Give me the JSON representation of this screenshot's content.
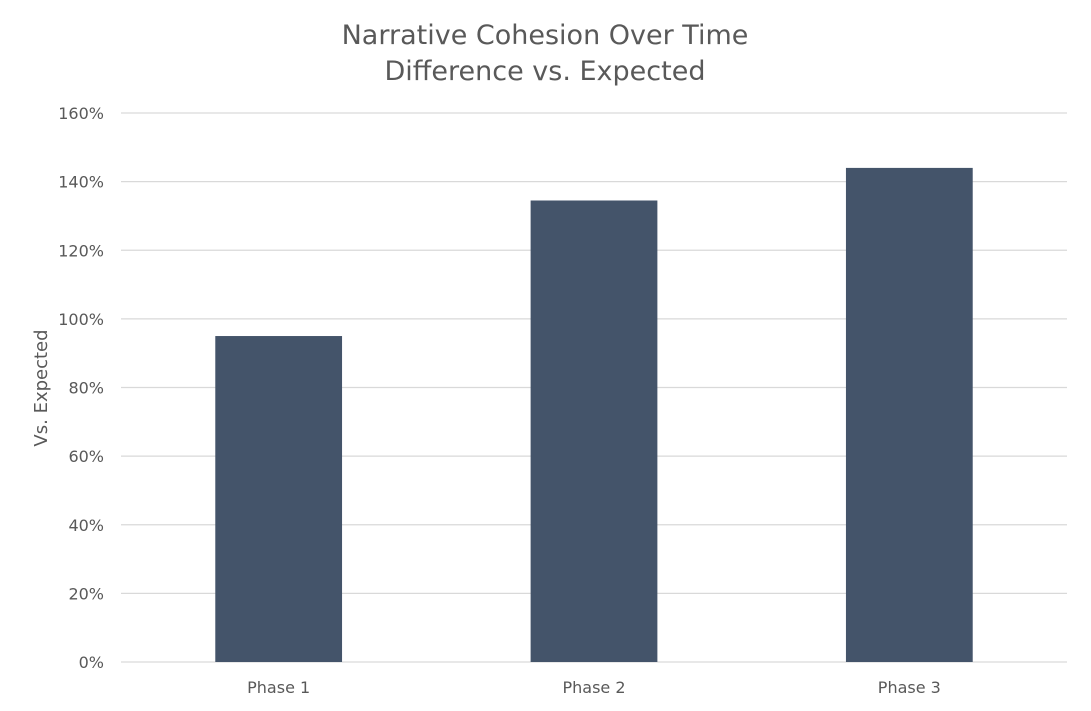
{
  "chart_data": {
    "type": "bar",
    "title": "Narrative Cohesion Over Time",
    "subtitle": "Difference vs. Expected",
    "xlabel": "",
    "ylabel": "Vs. Expected",
    "categories": [
      "Phase 1",
      "Phase 2",
      "Phase 3"
    ],
    "series": [
      {
        "values": [
          95,
          134.5,
          144
        ]
      }
    ],
    "ylim": [
      0,
      160
    ],
    "yticks": [
      0,
      20,
      40,
      60,
      80,
      100,
      120,
      140,
      160
    ],
    "ytick_labels": [
      "0%",
      "20%",
      "40%",
      "60%",
      "80%",
      "100%",
      "120%",
      "140%",
      "160%"
    ],
    "grid": true,
    "legend": "none",
    "colors": {
      "bar": "#44546a",
      "grid": "#d9d9d9",
      "text": "#595959"
    }
  }
}
